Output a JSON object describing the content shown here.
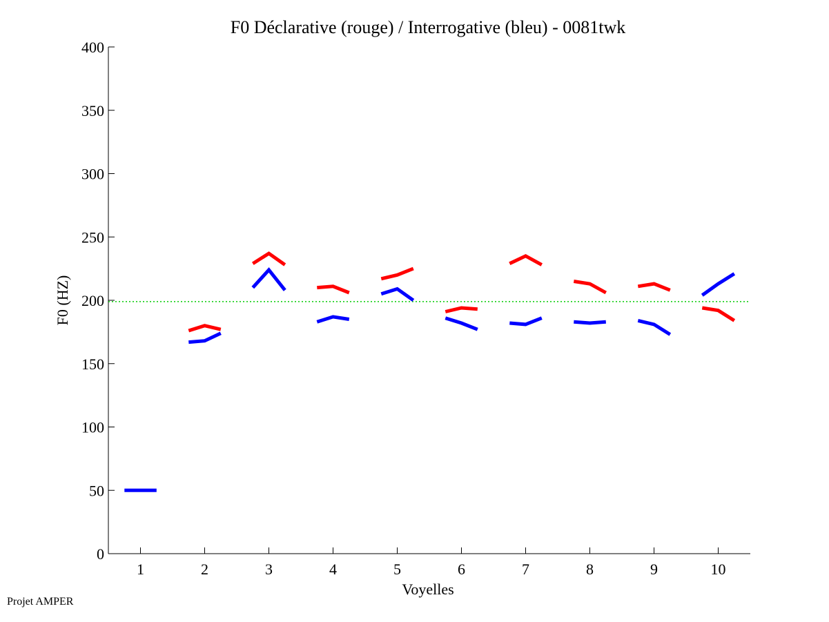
{
  "footer": {
    "credit": "Projet AMPER"
  },
  "chart_data": {
    "type": "line",
    "title": "F0 Déclarative (rouge) / Interrogative (bleu) - 0081twk",
    "xlabel": "Voyelles",
    "ylabel": "F0 (HZ)",
    "xlim": [
      0.5,
      10.5
    ],
    "ylim": [
      0,
      400
    ],
    "xticks": [
      1,
      2,
      3,
      4,
      5,
      6,
      7,
      8,
      9,
      10
    ],
    "yticks": [
      0,
      50,
      100,
      150,
      200,
      250,
      300,
      350,
      400
    ],
    "reference_line": {
      "name": "mean F0",
      "y": 199,
      "color": "#00cc00",
      "style": "dotted"
    },
    "series": [
      {
        "name": "Déclarative",
        "color": "#ff0000",
        "segments": [
          {
            "vowel": 2,
            "x": [
              1.75,
              2.0,
              2.25
            ],
            "y": [
              176,
              180,
              177
            ]
          },
          {
            "vowel": 3,
            "x": [
              2.75,
              3.0,
              3.25
            ],
            "y": [
              229,
              237,
              228
            ]
          },
          {
            "vowel": 4,
            "x": [
              3.75,
              4.0,
              4.25
            ],
            "y": [
              210,
              211,
              206
            ]
          },
          {
            "vowel": 5,
            "x": [
              4.75,
              5.0,
              5.25
            ],
            "y": [
              217,
              220,
              225
            ]
          },
          {
            "vowel": 6,
            "x": [
              5.75,
              6.0,
              6.25
            ],
            "y": [
              191,
              194,
              193
            ]
          },
          {
            "vowel": 7,
            "x": [
              6.75,
              7.0,
              7.25
            ],
            "y": [
              229,
              235,
              228
            ]
          },
          {
            "vowel": 8,
            "x": [
              7.75,
              8.0,
              8.25
            ],
            "y": [
              215,
              213,
              206
            ]
          },
          {
            "vowel": 9,
            "x": [
              8.75,
              9.0,
              9.25
            ],
            "y": [
              211,
              213,
              208
            ]
          },
          {
            "vowel": 10,
            "x": [
              9.75,
              10.0,
              10.25
            ],
            "y": [
              194,
              192,
              184
            ]
          }
        ]
      },
      {
        "name": "Interrogative",
        "color": "#0000ff",
        "segments": [
          {
            "vowel": 1,
            "x": [
              0.75,
              1.0,
              1.25
            ],
            "y": [
              50,
              50,
              50
            ]
          },
          {
            "vowel": 2,
            "x": [
              1.75,
              2.0,
              2.25
            ],
            "y": [
              167,
              168,
              174
            ]
          },
          {
            "vowel": 3,
            "x": [
              2.75,
              3.0,
              3.25
            ],
            "y": [
              210,
              224,
              208
            ]
          },
          {
            "vowel": 4,
            "x": [
              3.75,
              4.0,
              4.25
            ],
            "y": [
              183,
              187,
              185
            ]
          },
          {
            "vowel": 5,
            "x": [
              4.75,
              5.0,
              5.25
            ],
            "y": [
              205,
              209,
              200
            ]
          },
          {
            "vowel": 6,
            "x": [
              5.75,
              6.0,
              6.25
            ],
            "y": [
              186,
              182,
              177
            ]
          },
          {
            "vowel": 7,
            "x": [
              6.75,
              7.0,
              7.25
            ],
            "y": [
              182,
              181,
              186
            ]
          },
          {
            "vowel": 8,
            "x": [
              7.75,
              8.0,
              8.25
            ],
            "y": [
              183,
              182,
              183
            ]
          },
          {
            "vowel": 9,
            "x": [
              8.75,
              9.0,
              9.25
            ],
            "y": [
              184,
              181,
              173
            ]
          },
          {
            "vowel": 10,
            "x": [
              9.75,
              10.0,
              10.25
            ],
            "y": [
              204,
              213,
              221
            ]
          }
        ]
      }
    ]
  }
}
